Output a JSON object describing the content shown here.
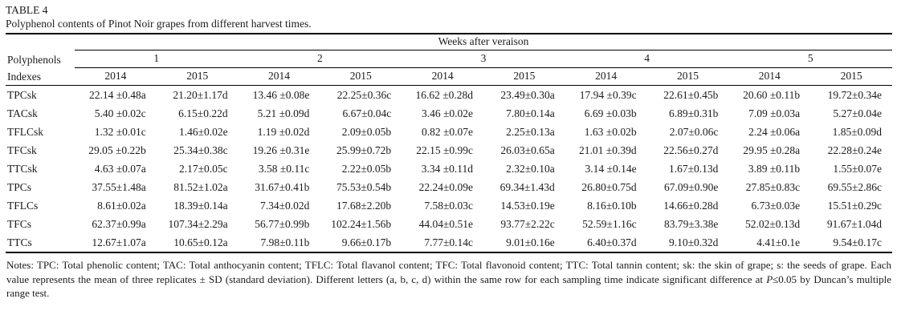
{
  "title": "TABLE 4",
  "caption": "Polyphenol contents of Pinot Noir grapes from different harvest times.",
  "table": {
    "group_header": "Weeks after veraison",
    "row_header": {
      "line1": "Polyphenols",
      "line2": "Indexes"
    },
    "weeks": [
      "1",
      "2",
      "3",
      "4",
      "5"
    ],
    "years": [
      "2014",
      "2015",
      "2014",
      "2015",
      "2014",
      "2015",
      "2014",
      "2015",
      "2014",
      "2015"
    ],
    "rows": [
      {
        "label": "TPCsk",
        "values": [
          "22.14 ±0.48a",
          "21.20±1.17d",
          "13.46 ±0.08e",
          "22.25±0.36c",
          "16.62 ±0.28d",
          "23.49±0.30a",
          "17.94 ±0.39c",
          "22.61±0.45b",
          "20.60 ±0.11b",
          "19.72±0.34e"
        ]
      },
      {
        "label": "TACsk",
        "values": [
          "5.40 ±0.02c",
          "6.15±0.22d",
          "5.21 ±0.09d",
          "6.67±0.04c",
          "3.46 ±0.02e",
          "7.80±0.14a",
          "6.69 ±0.03b",
          "6.89±0.31b",
          "7.09 ±0.03a",
          "5.27±0.04e"
        ]
      },
      {
        "label": "TFLCsk",
        "values": [
          "1.32 ±0.01c",
          "1.46±0.02e",
          "1.19 ±0.02d",
          "2.09±0.05b",
          "0.82 ±0.07e",
          "2.25±0.13a",
          "1.63 ±0.02b",
          "2.07±0.06c",
          "2.24 ±0.06a",
          "1.85±0.09d"
        ]
      },
      {
        "label": "TFCsk",
        "values": [
          "29.05 ±0.22b",
          "25.34±0.38c",
          "19.26 ±0.31e",
          "25.99±0.72b",
          "22.15 ±0.99c",
          "26.03±0.65a",
          "21.01 ±0.39d",
          "22.56±0.27d",
          "29.95 ±0.28a",
          "22.28±0.24e"
        ]
      },
      {
        "label": "TTCsk",
        "values": [
          "4.63 ±0.07a",
          "2.17±0.05c",
          "3.58 ±0.11c",
          "2.22±0.05b",
          "3.34 ±0.11d",
          "2.32±0.10a",
          "3.14 ±0.14e",
          "1.67±0.13d",
          "3.89 ±0.11b",
          "1.55±0.07e"
        ]
      },
      {
        "label": "TPCs",
        "values": [
          "37.55±1.48a",
          "81.52±1.02a",
          "31.67±0.41b",
          "75.53±0.54b",
          "22.24±0.09e",
          "69.34±1.43d",
          "26.80±0.75d",
          "67.09±0.90e",
          "27.85±0.83c",
          "69.55±2.86c"
        ]
      },
      {
        "label": "TFLCs",
        "values": [
          "8.61±0.02a",
          "18.39±0.14a",
          "7.34±0.02d",
          "17.68±2.20b",
          "7.58±0.03c",
          "14.53±0.19e",
          "8.16±0.10b",
          "14.66±0.28d",
          "6.73±0.03e",
          "15.51±0.29c"
        ]
      },
      {
        "label": "TFCs",
        "values": [
          "62.37±0.99a",
          "107.34±2.29a",
          "56.77±0.99b",
          "102.24±1.56b",
          "44.04±0.51e",
          "93.77±2.22c",
          "52.59±1.16c",
          "83.79±3.38e",
          "52.02±0.13d",
          "91.67±1.04d"
        ]
      },
      {
        "label": "TTCs",
        "values": [
          "12.67±1.07a",
          "10.65±0.12a",
          "7.98±0.11b",
          "9.66±0.17b",
          "7.77±0.14c",
          "9.01±0.16e",
          "6.40±0.37d",
          "9.10±0.32d",
          "4.41±0.1e",
          "9.54±0.17c"
        ]
      }
    ]
  },
  "notes": {
    "pre": "Notes: TPC: Total phenolic content; TAC: Total anthocyanin content; TFLC: Total flavanol content; TFC: Total flavonoid content; TTC: Total tannin content; sk: the skin of grape; s: the seeds of grape. Each value represents the mean of three replicates ± SD (standard deviation). Different letters (a, b, c, d) within the same row for each sampling time indicate significant difference at ",
    "p_symbol": "P",
    "post": "≤0.05 by Duncan’s multiple range test."
  }
}
